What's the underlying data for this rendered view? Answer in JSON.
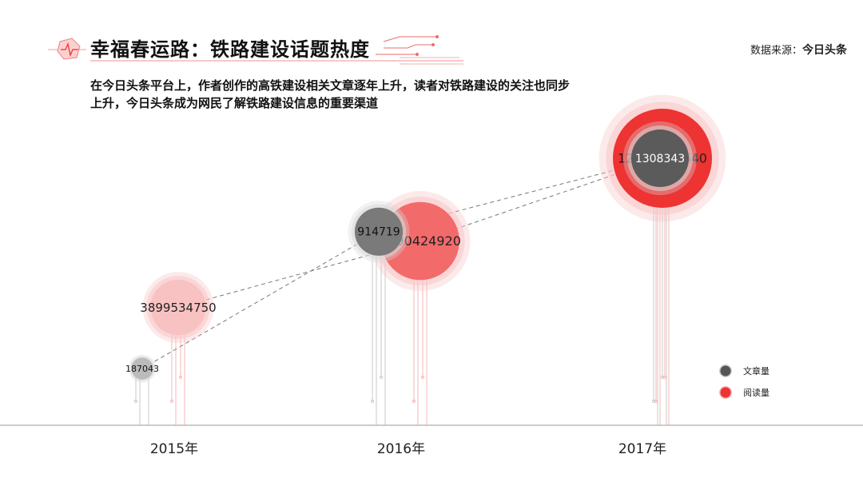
{
  "header": {
    "title": "幸福春运路：铁路建设话题热度",
    "source_prefix": "数据来源：",
    "source_name": "今日头条"
  },
  "description": "在今日头条平台上，作者创作的高铁建设相关文章逐年上升，读者对铁路建设的关注也同步上升，今日头条成为网民了解铁路建设信息的重要渠道",
  "legend": {
    "article": "文章量",
    "read": "阅读量"
  },
  "colors": {
    "article": "#5b5b5b",
    "read": "#ee3333",
    "axis": "#999999"
  },
  "chart_data": {
    "type": "scatter",
    "title": "幸福春运路：铁路建设话题热度",
    "categories": [
      "2015年",
      "2016年",
      "2017年"
    ],
    "series": [
      {
        "name": "文章量",
        "values": [
          187043,
          914719,
          1308343
        ]
      },
      {
        "name": "阅读量",
        "values": [
          3899534750,
          7690424920,
          12415287640
        ]
      }
    ],
    "xlabel": "",
    "ylabel": "",
    "legend_position": "bottom-right",
    "grid": false
  }
}
